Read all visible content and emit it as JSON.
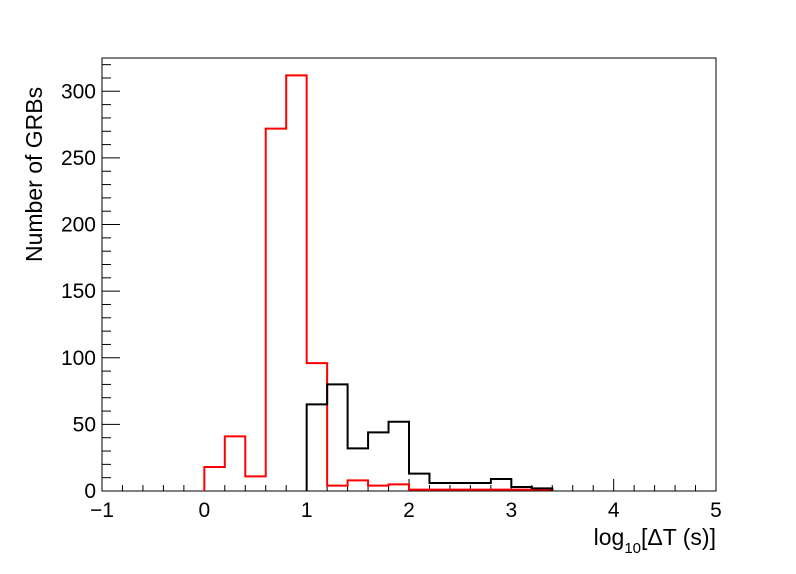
{
  "chart_data": {
    "type": "histogram",
    "title": "",
    "xlabel": {
      "prefix": "log",
      "subscript": "10",
      "suffix": "[ΔT (s)]"
    },
    "ylabel": "Number of GRBs",
    "xlim": [
      -1,
      5
    ],
    "ylim": [
      0,
      325
    ],
    "x_ticks": [
      -1,
      0,
      1,
      2,
      3,
      4,
      5
    ],
    "x_tick_labels": [
      "−1",
      "0",
      "1",
      "2",
      "3",
      "4",
      "5"
    ],
    "y_ticks": [
      0,
      50,
      100,
      150,
      200,
      250,
      300
    ],
    "y_tick_labels": [
      "0",
      "50",
      "100",
      "150",
      "200",
      "250",
      "300"
    ],
    "bin_width": 0.2,
    "grid": false,
    "series": [
      {
        "color": "#ff0000",
        "bins": [
          {
            "x0": 0.0,
            "value": 18
          },
          {
            "x0": 0.2,
            "value": 41
          },
          {
            "x0": 0.4,
            "value": 11
          },
          {
            "x0": 0.6,
            "value": 272
          },
          {
            "x0": 0.8,
            "value": 312
          },
          {
            "x0": 1.0,
            "value": 96
          },
          {
            "x0": 1.2,
            "value": 4
          },
          {
            "x0": 1.4,
            "value": 8
          },
          {
            "x0": 1.6,
            "value": 4
          },
          {
            "x0": 1.8,
            "value": 5
          },
          {
            "x0": 2.0,
            "value": 1
          },
          {
            "x0": 2.2,
            "value": 1
          },
          {
            "x0": 2.4,
            "value": 1
          },
          {
            "x0": 2.6,
            "value": 1
          },
          {
            "x0": 2.8,
            "value": 1
          },
          {
            "x0": 3.0,
            "value": 1
          },
          {
            "x0": 3.2,
            "value": 1
          }
        ]
      },
      {
        "color": "#000000",
        "bins": [
          {
            "x0": 1.0,
            "value": 65
          },
          {
            "x0": 1.2,
            "value": 80
          },
          {
            "x0": 1.4,
            "value": 32
          },
          {
            "x0": 1.6,
            "value": 44
          },
          {
            "x0": 1.8,
            "value": 52
          },
          {
            "x0": 2.0,
            "value": 13
          },
          {
            "x0": 2.2,
            "value": 6
          },
          {
            "x0": 2.4,
            "value": 6
          },
          {
            "x0": 2.6,
            "value": 6
          },
          {
            "x0": 2.8,
            "value": 9
          },
          {
            "x0": 3.0,
            "value": 3
          },
          {
            "x0": 3.2,
            "value": 2
          }
        ]
      }
    ]
  }
}
